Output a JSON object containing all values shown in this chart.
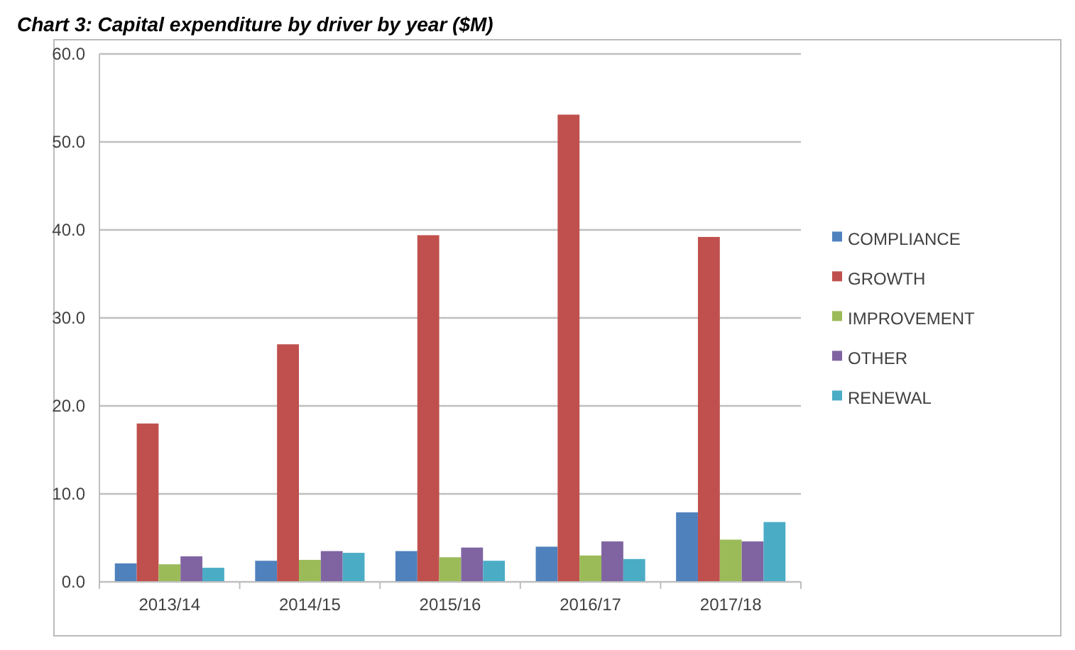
{
  "chart_data": {
    "type": "bar",
    "title": "Chart 3: Capital expenditure by driver by year ($M)",
    "categories": [
      "2013/14",
      "2014/15",
      "2015/16",
      "2016/17",
      "2017/18"
    ],
    "series": [
      {
        "name": "COMPLIANCE",
        "color": "#4f81bd",
        "values": [
          2.1,
          2.4,
          3.5,
          4.0,
          7.9
        ]
      },
      {
        "name": "GROWTH",
        "color": "#c0504d",
        "values": [
          18.0,
          27.0,
          39.4,
          53.1,
          39.2
        ]
      },
      {
        "name": "IMPROVEMENT",
        "color": "#9bbb59",
        "values": [
          2.0,
          2.5,
          2.8,
          3.0,
          4.8
        ]
      },
      {
        "name": "OTHER",
        "color": "#8064a2",
        "values": [
          2.9,
          3.5,
          3.9,
          4.6,
          4.6
        ]
      },
      {
        "name": "RENEWAL",
        "color": "#4bacc6",
        "values": [
          1.6,
          3.3,
          2.4,
          2.6,
          6.8
        ]
      }
    ],
    "ylim": [
      0,
      60
    ],
    "yticks": [
      {
        "value": 0,
        "label": "0.0"
      },
      {
        "value": 10,
        "label": "10.0"
      },
      {
        "value": 20,
        "label": "20.0"
      },
      {
        "value": 30,
        "label": "30.0"
      },
      {
        "value": 40,
        "label": "40.0"
      },
      {
        "value": 50,
        "label": "50.0"
      },
      {
        "value": 60,
        "label": "60.0"
      }
    ],
    "grid": "y",
    "legend": "right"
  }
}
